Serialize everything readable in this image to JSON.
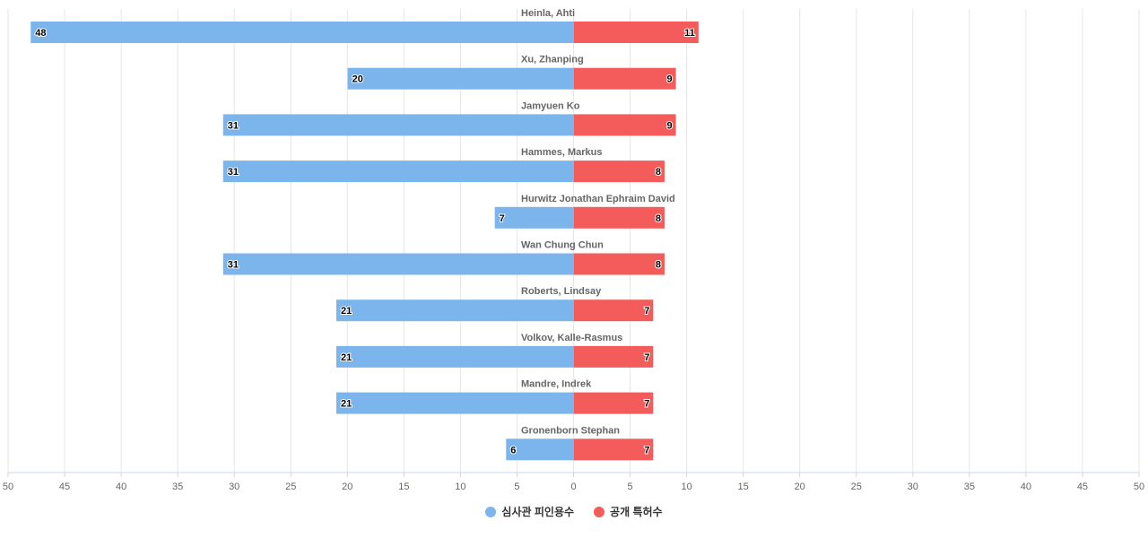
{
  "chart_data": {
    "type": "bar",
    "orientation": "horizontal-diverging",
    "categories": [
      "Heinla, Ahti",
      "Xu, Zhanping",
      "Jamyuen Ko",
      "Hammes, Markus",
      "Hurwitz Jonathan Ephraim David",
      "Wan Chung Chun",
      "Roberts, Lindsay",
      "Volkov, Kalle-Rasmus",
      "Mandre, Indrek",
      "Gronenborn Stephan"
    ],
    "series": [
      {
        "name": "심사관 피인용수",
        "color": "#7cb5ec",
        "direction": "left",
        "values": [
          48,
          20,
          31,
          31,
          7,
          31,
          21,
          21,
          21,
          6
        ]
      },
      {
        "name": "공개 특허수",
        "color": "#f45b5b",
        "direction": "right",
        "values": [
          11,
          9,
          9,
          8,
          8,
          8,
          7,
          7,
          7,
          7
        ]
      }
    ],
    "xlim": [
      -50,
      50
    ],
    "ticks": [
      "50",
      "45",
      "40",
      "35",
      "30",
      "25",
      "20",
      "15",
      "10",
      "5",
      "0",
      "5",
      "10",
      "15",
      "20",
      "25",
      "30",
      "35",
      "40",
      "45",
      "50"
    ],
    "grid": true,
    "legend_position": "bottom-center"
  },
  "legend": {
    "items": [
      {
        "label": "심사관 피인용수",
        "color": "#7cb5ec"
      },
      {
        "label": "공개 특허수",
        "color": "#f45b5b"
      }
    ]
  }
}
